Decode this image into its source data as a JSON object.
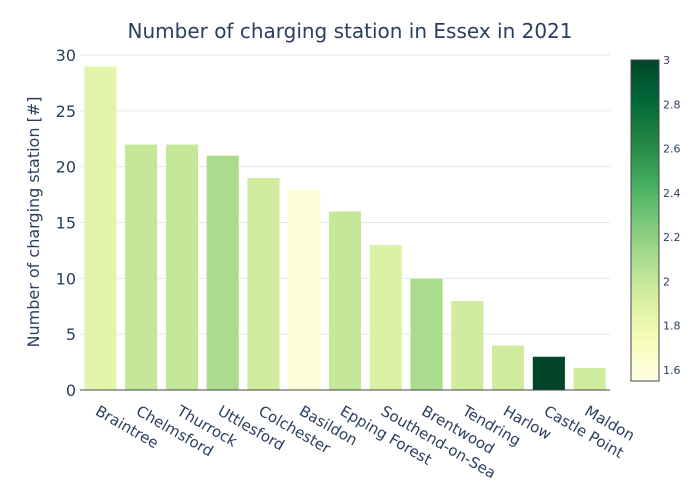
{
  "chart_data": {
    "type": "bar",
    "title": "Number of charging station in Essex in 2021",
    "xlabel": "",
    "ylabel": "Number of charging station [#]",
    "ylim": [
      0,
      30
    ],
    "yticks": [
      0,
      5,
      10,
      15,
      20,
      25,
      30
    ],
    "categories": [
      "Braintree",
      "Chelmsford",
      "Thurrock",
      "Uttlesford",
      "Colchester",
      "Basildon",
      "Epping Forest",
      "Southend-on-Sea",
      "Brentwood",
      "Tendring",
      "Harlow",
      "Castle Point",
      "Maldon"
    ],
    "values": [
      29,
      22,
      22,
      21,
      19,
      18,
      16,
      13,
      10,
      8,
      4,
      3,
      2
    ],
    "color_values": [
      1.85,
      2.0,
      2.0,
      2.1,
      1.95,
      1.6,
      2.0,
      1.9,
      2.1,
      1.95,
      1.95,
      3.0,
      1.95
    ],
    "colorscale": "YlGn",
    "colorbar": {
      "range": [
        1.55,
        3.0
      ],
      "ticks": [
        "1.6",
        "1.8",
        "2",
        "2.2",
        "2.4",
        "2.6",
        "2.8",
        "3"
      ]
    },
    "grid": true,
    "legend": "colorbar-right"
  }
}
